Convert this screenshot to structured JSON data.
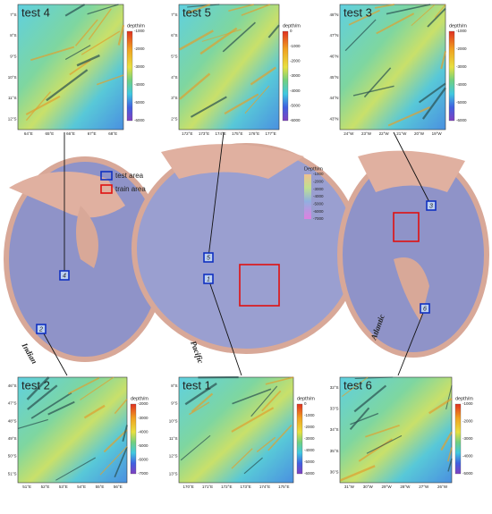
{
  "panels": [
    {
      "title": "test 4",
      "colorbar_label": "depth/m",
      "colorbar_ticks": [
        -1000,
        -2000,
        -3000,
        -4000,
        -5000,
        -6000
      ],
      "x_labels": [
        "64°E",
        "65°E",
        "66°E",
        "67°E",
        "68°E"
      ],
      "y_labels": [
        "7°S",
        "8°S",
        "9°S",
        "10°S",
        "11°S",
        "12°S"
      ]
    },
    {
      "title": "test 5",
      "colorbar_label": "depth/m",
      "colorbar_ticks": [
        0,
        -1000,
        -2000,
        -3000,
        -4000,
        -5000,
        -6000
      ],
      "x_labels": [
        "172°E",
        "173°E",
        "174°E",
        "175°E",
        "176°E",
        "177°E"
      ],
      "y_labels": [
        "7°S",
        "6°S",
        "5°S",
        "4°S",
        "3°S",
        "2°S"
      ]
    },
    {
      "title": "test 3",
      "colorbar_label": "depth/m",
      "colorbar_ticks": [
        -1000,
        -2000,
        -3000,
        -4000,
        -5000,
        -6000
      ],
      "x_labels": [
        "24°W",
        "23°W",
        "22°W",
        "21°W",
        "20°W",
        "19°W"
      ],
      "y_labels": [
        "48°N",
        "47°N",
        "46°N",
        "45°N",
        "44°N",
        "43°N"
      ]
    },
    {
      "title": "test 2",
      "colorbar_label": "depth/m",
      "colorbar_ticks": [
        -2000,
        -3000,
        -4000,
        -5000,
        -6000,
        -7000
      ],
      "x_labels": [
        "51°E",
        "52°E",
        "53°E",
        "54°E",
        "55°E",
        "56°E"
      ],
      "y_labels": [
        "46°S",
        "47°S",
        "48°S",
        "49°S",
        "50°S",
        "51°S"
      ]
    },
    {
      "title": "test 1",
      "colorbar_label": "depth/m",
      "colorbar_ticks": [
        0,
        -1000,
        -2000,
        -3000,
        -4000,
        -5000,
        -6000
      ],
      "x_labels": [
        "170°E",
        "171°E",
        "172°E",
        "173°E",
        "174°E",
        "175°E"
      ],
      "y_labels": [
        "8°S",
        "9°S",
        "10°S",
        "11°S",
        "12°S",
        "13°S"
      ]
    },
    {
      "title": "test 6",
      "colorbar_label": "depth/m",
      "colorbar_ticks": [
        -1000,
        -2000,
        -3000,
        -4000,
        -5000
      ],
      "x_labels": [
        "31°W",
        "30°W",
        "29°W",
        "28°W",
        "27°W",
        "26°W"
      ],
      "y_labels": [
        "32°S",
        "33°S",
        "34°S",
        "35°S",
        "36°S"
      ]
    }
  ],
  "map": {
    "legend": {
      "test": "test area",
      "train": "train area"
    },
    "depth_legend": {
      "label": "Depth/m",
      "ticks": [
        -1000,
        -2000,
        -3000,
        -4000,
        -5000,
        -6000,
        -7000
      ]
    },
    "oceans": [
      "Indian",
      "Pacific",
      "Atlantic"
    ],
    "test_boxes": [
      "4",
      "5",
      "3",
      "2",
      "1",
      "6"
    ]
  }
}
